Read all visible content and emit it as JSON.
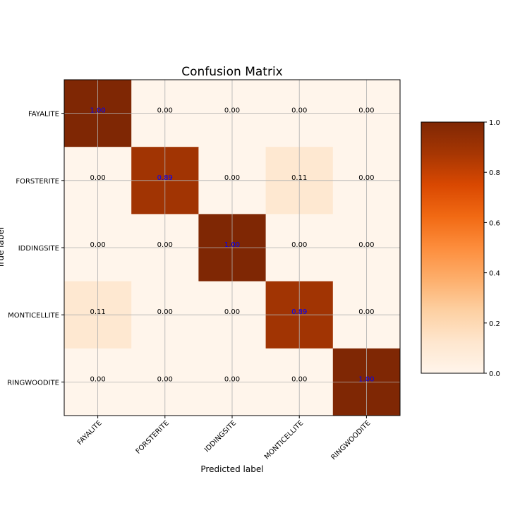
{
  "chart_data": {
    "type": "heatmap",
    "title": "Confusion Matrix",
    "xlabel": "Predicted label",
    "ylabel": "True label",
    "x_categories": [
      "FAYALITE",
      "FORSTERITE",
      "IDDINGSITE",
      "MONTICELLITE",
      "RINGWOODITE"
    ],
    "y_categories": [
      "FAYALITE",
      "FORSTERITE",
      "IDDINGSITE",
      "MONTICELLITE",
      "RINGWOODITE"
    ],
    "values": [
      [
        1.0,
        0.0,
        0.0,
        0.0,
        0.0
      ],
      [
        0.0,
        0.89,
        0.0,
        0.11,
        0.0
      ],
      [
        0.0,
        0.0,
        1.0,
        0.0,
        0.0
      ],
      [
        0.11,
        0.0,
        0.0,
        0.89,
        0.0
      ],
      [
        0.0,
        0.0,
        0.0,
        0.0,
        1.0
      ]
    ],
    "cell_labels": [
      [
        "1.00",
        "0.00",
        "0.00",
        "0.00",
        "0.00"
      ],
      [
        "0.00",
        "0.89",
        "0.00",
        "0.11",
        "0.00"
      ],
      [
        "0.00",
        "0.00",
        "1.00",
        "0.00",
        "0.00"
      ],
      [
        "0.11",
        "0.00",
        "0.00",
        "0.89",
        "0.00"
      ],
      [
        "0.00",
        "0.00",
        "0.00",
        "0.00",
        "1.00"
      ]
    ],
    "colormap": "Oranges",
    "colorbar": {
      "range": [
        0,
        1
      ],
      "ticks": [
        0.0,
        0.2,
        0.4,
        0.6,
        0.8,
        1.0
      ],
      "tick_labels": [
        "0.0",
        "0.2",
        "0.4",
        "0.6",
        "0.8",
        "1.0"
      ]
    },
    "grid": true,
    "label_colors": {
      "diagonal": "#0000ff",
      "off_diagonal": "#000000"
    }
  }
}
